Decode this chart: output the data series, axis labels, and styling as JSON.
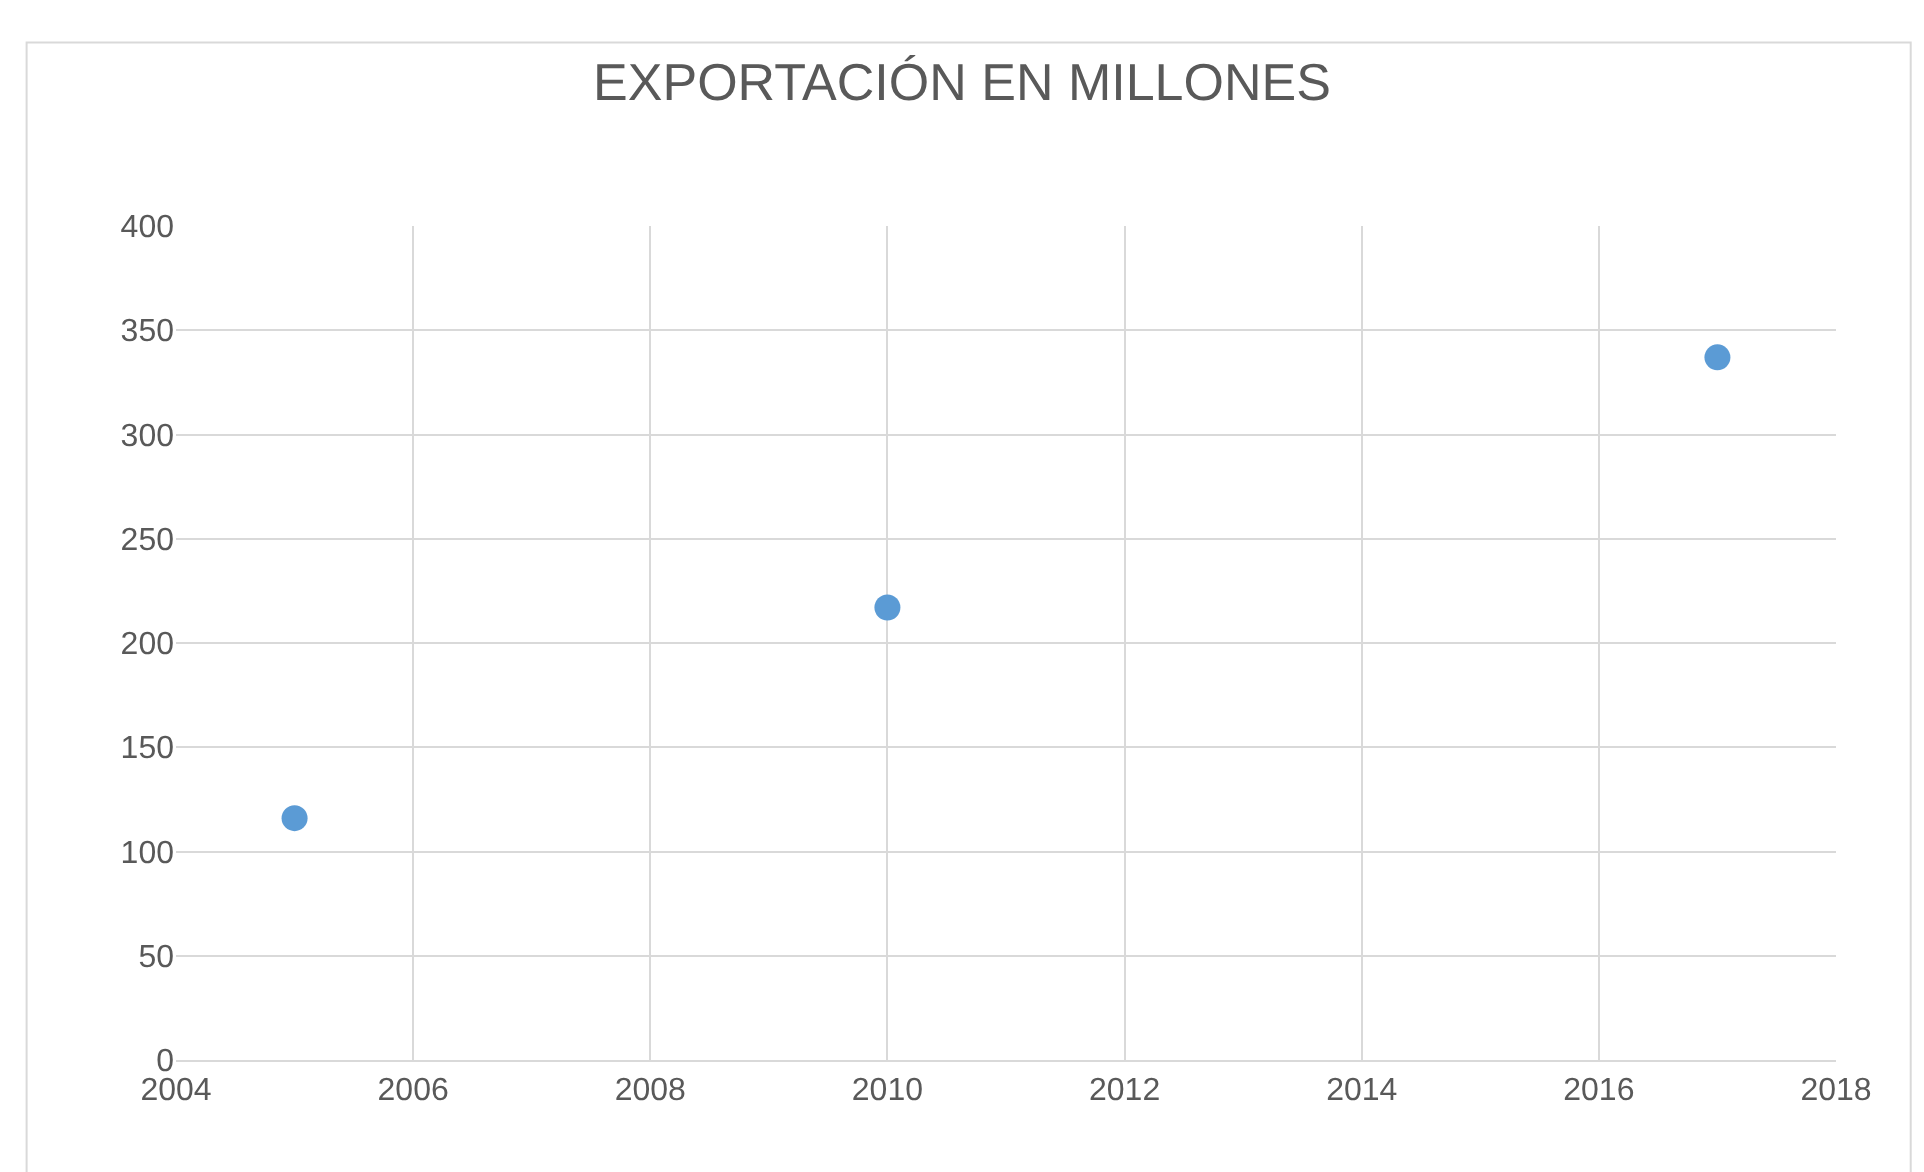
{
  "chart_data": {
    "type": "scatter",
    "title": "EXPORTACIÓN EN MILLONES",
    "x": [
      2005,
      2010,
      2017
    ],
    "series": [
      {
        "color": "#5b9bd5",
        "values": [
          116,
          217,
          337
        ]
      }
    ],
    "xlim": [
      2004,
      2018
    ],
    "xticks": [
      2004,
      2006,
      2008,
      2010,
      2012,
      2014,
      2016,
      2018
    ],
    "ylim": [
      0,
      400
    ],
    "yticks": [
      0,
      50,
      100,
      150,
      200,
      250,
      300,
      350,
      400
    ],
    "grid": true,
    "marker": "circle"
  }
}
